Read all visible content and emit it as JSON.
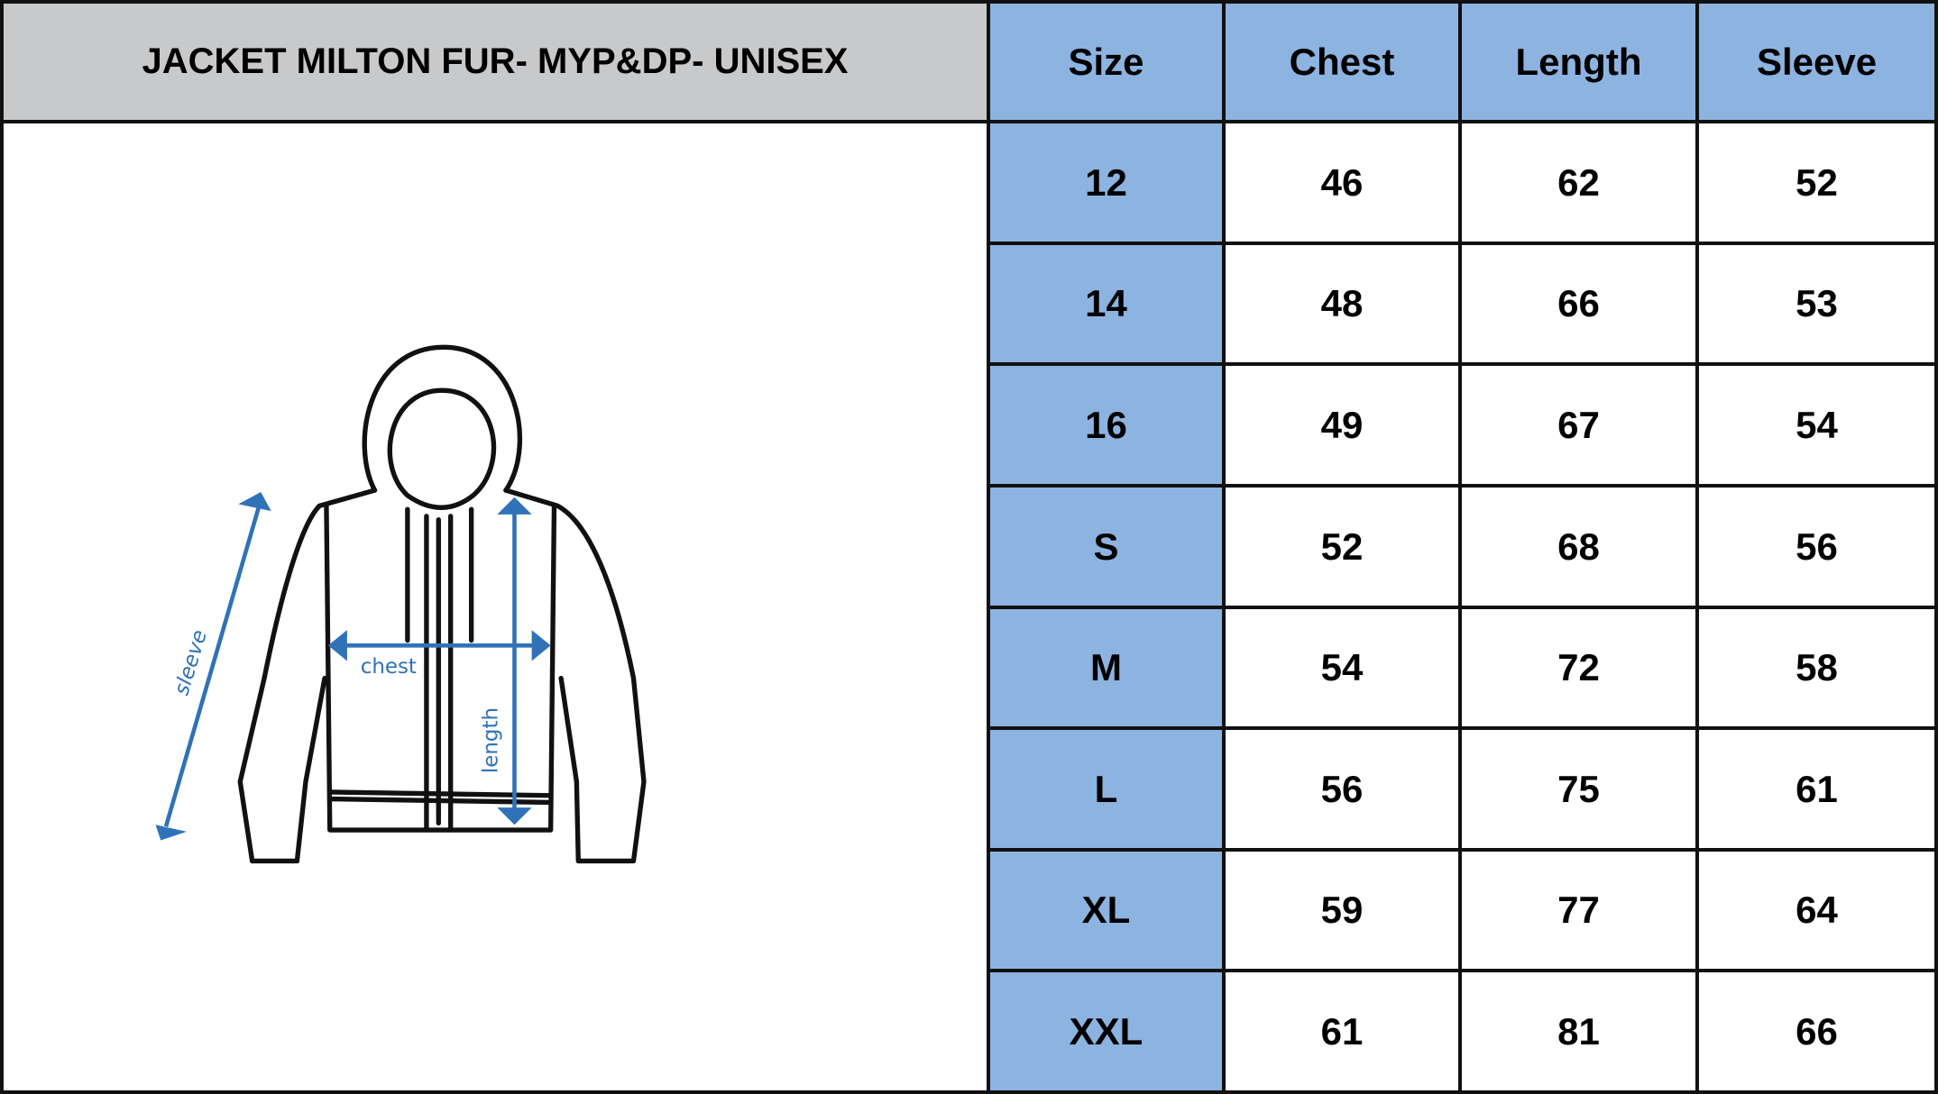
{
  "title": "JACKET MILTON FUR-  MYP&DP- UNISEX",
  "headers": [
    "Size",
    "Chest",
    "Length",
    "Sleeve"
  ],
  "rows": [
    [
      "12",
      "46",
      "62",
      "52"
    ],
    [
      "14",
      "48",
      "66",
      "53"
    ],
    [
      "16",
      "49",
      "67",
      "54"
    ],
    [
      "S",
      "52",
      "68",
      "56"
    ],
    [
      "M",
      "54",
      "72",
      "58"
    ],
    [
      "L",
      "56",
      "75",
      "61"
    ],
    [
      "XL",
      "59",
      "77",
      "64"
    ],
    [
      "XXL",
      "61",
      "81",
      "66"
    ]
  ],
  "diagram": {
    "sleeve_label": "sleeve",
    "chest_label": "chest",
    "length_label": "length"
  },
  "colors": {
    "header_gray": "#c8c9cb",
    "header_blue": "#8db3e0",
    "arrow_blue": "#2f72b8"
  }
}
